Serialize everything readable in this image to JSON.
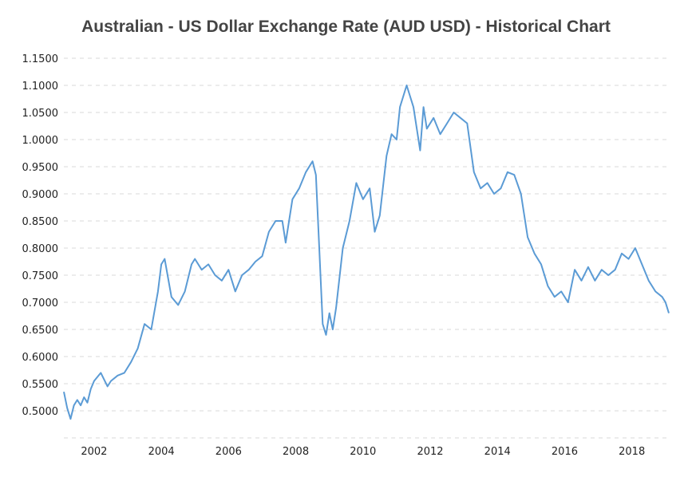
{
  "chart_data": {
    "type": "line",
    "title": "Australian - US Dollar Exchange Rate (AUD USD) - Historical Chart",
    "xlabel": "",
    "ylabel": "",
    "xlim": [
      2001.1,
      2019.1
    ],
    "ylim": [
      0.45,
      1.15
    ],
    "x_ticks": [
      "2002",
      "2004",
      "2006",
      "2008",
      "2010",
      "2012",
      "2014",
      "2016",
      "2018"
    ],
    "y_ticks": [
      "0.5000",
      "0.5500",
      "0.6000",
      "0.6500",
      "0.7000",
      "0.7500",
      "0.8000",
      "0.8500",
      "0.9000",
      "0.9500",
      "1.0000",
      "1.0500",
      "1.1000",
      "1.1500"
    ],
    "grid": true,
    "line_color": "#5b9bd5",
    "series": [
      {
        "x": [
          2001.1,
          2001.2,
          2001.3,
          2001.4,
          2001.5,
          2001.6,
          2001.7,
          2001.8,
          2001.9,
          2002.0,
          2002.2,
          2002.4,
          2002.5,
          2002.7,
          2002.9,
          2003.1,
          2003.3,
          2003.5,
          2003.7,
          2003.9,
          2004.0,
          2004.1,
          2004.3,
          2004.5,
          2004.7,
          2004.9,
          2005.0,
          2005.2,
          2005.4,
          2005.6,
          2005.8,
          2006.0,
          2006.2,
          2006.4,
          2006.6,
          2006.8,
          2007.0,
          2007.2,
          2007.4,
          2007.6,
          2007.7,
          2007.9,
          2008.1,
          2008.3,
          2008.5,
          2008.6,
          2008.7,
          2008.8,
          2008.9,
          2009.0,
          2009.1,
          2009.2,
          2009.4,
          2009.6,
          2009.8,
          2010.0,
          2010.2,
          2010.35,
          2010.5,
          2010.7,
          2010.85,
          2011.0,
          2011.1,
          2011.3,
          2011.5,
          2011.7,
          2011.8,
          2011.9,
          2012.1,
          2012.3,
          2012.5,
          2012.7,
          2012.9,
          2013.1,
          2013.3,
          2013.5,
          2013.7,
          2013.9,
          2014.1,
          2014.3,
          2014.5,
          2014.7,
          2014.9,
          2015.1,
          2015.3,
          2015.5,
          2015.7,
          2015.9,
          2016.1,
          2016.3,
          2016.5,
          2016.7,
          2016.9,
          2017.1,
          2017.3,
          2017.5,
          2017.7,
          2017.9,
          2018.1,
          2018.3,
          2018.5,
          2018.7,
          2018.9,
          2019.0,
          2019.1
        ],
        "y": [
          0.535,
          0.505,
          0.485,
          0.51,
          0.52,
          0.51,
          0.525,
          0.515,
          0.54,
          0.555,
          0.57,
          0.545,
          0.555,
          0.565,
          0.57,
          0.59,
          0.615,
          0.66,
          0.65,
          0.72,
          0.77,
          0.78,
          0.71,
          0.695,
          0.72,
          0.77,
          0.78,
          0.76,
          0.77,
          0.75,
          0.74,
          0.76,
          0.72,
          0.75,
          0.76,
          0.775,
          0.785,
          0.83,
          0.85,
          0.85,
          0.81,
          0.89,
          0.91,
          0.94,
          0.96,
          0.935,
          0.8,
          0.66,
          0.64,
          0.68,
          0.65,
          0.69,
          0.8,
          0.85,
          0.92,
          0.89,
          0.91,
          0.83,
          0.86,
          0.97,
          1.01,
          1.0,
          1.06,
          1.1,
          1.06,
          0.98,
          1.06,
          1.02,
          1.04,
          1.01,
          1.03,
          1.05,
          1.04,
          1.03,
          0.94,
          0.91,
          0.92,
          0.9,
          0.91,
          0.94,
          0.935,
          0.9,
          0.82,
          0.79,
          0.77,
          0.73,
          0.71,
          0.72,
          0.7,
          0.76,
          0.74,
          0.765,
          0.74,
          0.76,
          0.75,
          0.76,
          0.79,
          0.78,
          0.8,
          0.77,
          0.74,
          0.72,
          0.71,
          0.7,
          0.68
        ]
      }
    ]
  }
}
